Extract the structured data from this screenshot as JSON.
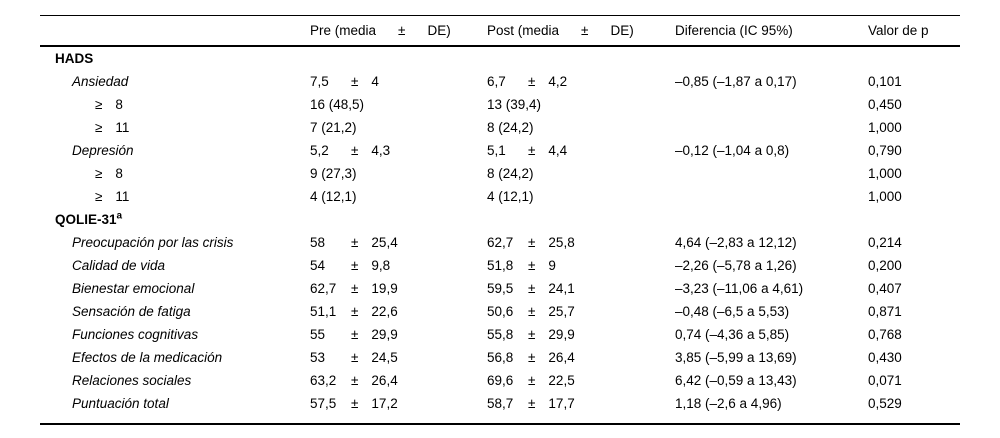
{
  "page": {
    "background": "#ffffff",
    "text_color": "#000000",
    "rule_color": "#000000"
  },
  "table": {
    "header": {
      "label": "",
      "pre": {
        "prefix": "Pre (media",
        "pm": "±",
        "suffix": "DE)"
      },
      "post": {
        "prefix": "Post (media",
        "pm": "±",
        "suffix": "DE)"
      },
      "diff": "Diferencia (IC 95%)",
      "p": "Valor de p"
    },
    "rows": [
      {
        "label": "HADS",
        "level": 0,
        "emph": "bold"
      },
      {
        "label": "Ansiedad",
        "level": 1,
        "emph": "italic",
        "pre": {
          "m": "7,5",
          "pm": "±",
          "sd": "4"
        },
        "post": {
          "m": "6,7",
          "pm": "±",
          "sd": "4,2"
        },
        "diff": "–0,85 (–1,87 a 0,17)",
        "p": "0,101"
      },
      {
        "label": "≥",
        "label2": "8",
        "level": 2,
        "pre": {
          "m": "16 (48,5)"
        },
        "post": {
          "m": "13 (39,4)"
        },
        "p": "0,450"
      },
      {
        "label": "≥",
        "label2": "11",
        "level": 2,
        "pre": {
          "m": "7 (21,2)"
        },
        "post": {
          "m": "8 (24,2)"
        },
        "p": "1,000"
      },
      {
        "label": "Depresión",
        "level": 1,
        "emph": "italic",
        "pre": {
          "m": "5,2",
          "pm": "±",
          "sd": "4,3"
        },
        "post": {
          "m": "5,1",
          "pm": "±",
          "sd": "4,4"
        },
        "diff": "–0,12 (–1,04 a 0,8)",
        "p": "0,790"
      },
      {
        "label": "≥",
        "label2": "8",
        "level": 2,
        "pre": {
          "m": "9 (27,3)"
        },
        "post": {
          "m": "8 (24,2)"
        },
        "p": "1,000"
      },
      {
        "label": "≥",
        "label2": "11",
        "level": 2,
        "pre": {
          "m": "4 (12,1)"
        },
        "post": {
          "m": "4 (12,1)"
        },
        "p": "1,000"
      },
      {
        "label": "QOLIE-31",
        "sup": "a",
        "level": 0,
        "emph": "bold"
      },
      {
        "label": "Preocupación por las crisis",
        "level": 1,
        "emph": "italic",
        "pre": {
          "m": "58",
          "pm": "±",
          "sd": "25,4"
        },
        "post": {
          "m": "62,7",
          "pm": "±",
          "sd": "25,8"
        },
        "diff": "4,64 (–2,83 a 12,12)",
        "p": "0,214"
      },
      {
        "label": "Calidad de vida",
        "level": 1,
        "emph": "italic",
        "pre": {
          "m": "54",
          "pm": "±",
          "sd": "9,8"
        },
        "post": {
          "m": "51,8",
          "pm": "±",
          "sd": "9"
        },
        "diff": "–2,26 (–5,78 a 1,26)",
        "p": "0,200"
      },
      {
        "label": "Bienestar emocional",
        "level": 1,
        "emph": "italic",
        "pre": {
          "m": "62,7",
          "pm": "±",
          "sd": "19,9"
        },
        "post": {
          "m": "59,5",
          "pm": "±",
          "sd": "24,1"
        },
        "diff": "–3,23 (–11,06 a 4,61)",
        "p": "0,407"
      },
      {
        "label": "Sensación de fatiga",
        "level": 1,
        "emph": "italic",
        "pre": {
          "m": "51,1",
          "pm": "±",
          "sd": "22,6"
        },
        "post": {
          "m": "50,6",
          "pm": "±",
          "sd": "25,7"
        },
        "diff": "–0,48 (–6,5 a 5,53)",
        "p": "0,871"
      },
      {
        "label": "Funciones cognitivas",
        "level": 1,
        "emph": "italic",
        "pre": {
          "m": "55",
          "pm": "±",
          "sd": "29,9"
        },
        "post": {
          "m": "55,8",
          "pm": "±",
          "sd": "29,9"
        },
        "diff": "0,74 (–4,36 a 5,85)",
        "p": "0,768"
      },
      {
        "label": "Efectos de la medicación",
        "level": 1,
        "emph": "italic",
        "pre": {
          "m": "53",
          "pm": "±",
          "sd": "24,5"
        },
        "post": {
          "m": "56,8",
          "pm": "±",
          "sd": "26,4"
        },
        "diff": "3,85 (–5,99 a 13,69)",
        "p": "0,430"
      },
      {
        "label": "Relaciones sociales",
        "level": 1,
        "emph": "italic",
        "pre": {
          "m": "63,2",
          "pm": "±",
          "sd": "26,4"
        },
        "post": {
          "m": "69,6",
          "pm": "±",
          "sd": "22,5"
        },
        "diff": "6,42 (–0,59 a 13,43)",
        "p": "0,071"
      },
      {
        "label": "Puntuación total",
        "level": 1,
        "emph": "italic",
        "pre": {
          "m": "57,5",
          "pm": "±",
          "sd": "17,2"
        },
        "post": {
          "m": "58,7",
          "pm": "±",
          "sd": "17,7"
        },
        "diff": "1,18 (–2,6 a 4,96)",
        "p": "0,529"
      }
    ]
  }
}
